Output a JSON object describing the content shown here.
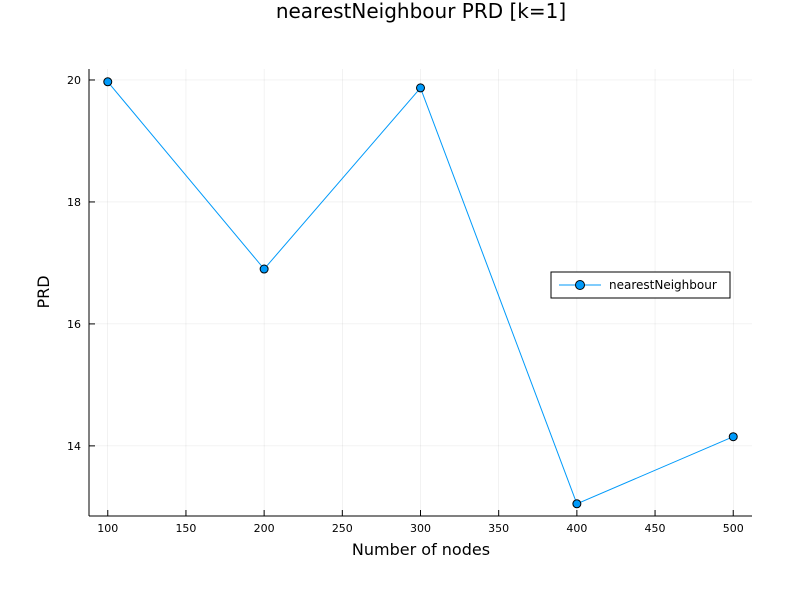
{
  "chart_data": {
    "type": "line",
    "title": "nearestNeighbour PRD [k=1]",
    "xlabel": "Number of nodes",
    "ylabel": "PRD",
    "x": [
      100,
      200,
      300,
      400,
      500
    ],
    "series": [
      {
        "name": "nearestNeighbour",
        "values": [
          19.97,
          16.9,
          19.87,
          13.05,
          14.15
        ],
        "color": "#009AFA",
        "marker": "circle"
      }
    ],
    "xlim": [
      88,
      512
    ],
    "ylim": [
      12.85,
      20.18
    ],
    "xticks": [
      100,
      150,
      200,
      250,
      300,
      350,
      400,
      450,
      500
    ],
    "xtick_labels": [
      "100",
      "150",
      "200",
      "250",
      "300",
      "350",
      "400",
      "450",
      "500"
    ],
    "yticks": [
      14,
      16,
      18,
      20
    ],
    "ytick_labels": [
      "14",
      "16",
      "18",
      "20"
    ],
    "grid": true,
    "legend_position": "right"
  }
}
